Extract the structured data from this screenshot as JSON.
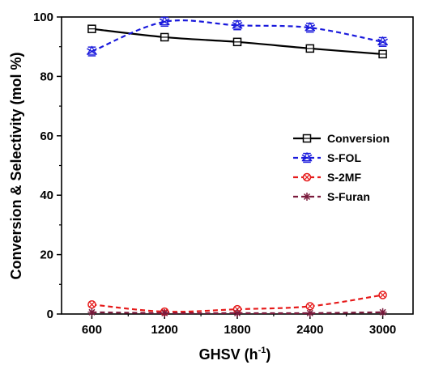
{
  "chart_data": {
    "type": "line",
    "xlabel": "GHSV (h",
    "xlabel_sup": "-1",
    "xlabel_tail": ")",
    "ylabel": "Conversion & Selectivity (mol %)",
    "x": [
      600,
      1200,
      1800,
      2400,
      3000
    ],
    "x_ticks": [
      "600",
      "1200",
      "1800",
      "2400",
      "3000"
    ],
    "y_ticks": [
      "0",
      "20",
      "40",
      "60",
      "80",
      "100"
    ],
    "xlim": [
      350,
      3250
    ],
    "ylim": [
      0,
      100
    ],
    "grid": false,
    "legend_position": "center-right",
    "series": [
      {
        "name": "Conversion",
        "values": [
          96.0,
          93.2,
          91.6,
          89.4,
          87.5
        ],
        "color": "#000000",
        "dash": "solid",
        "marker": "square"
      },
      {
        "name": "S-FOL",
        "values": [
          88.4,
          98.4,
          97.2,
          96.4,
          91.6
        ],
        "color": "#1a1adc",
        "dash": "dashed",
        "marker": "star"
      },
      {
        "name": "S-2MF",
        "values": [
          3.2,
          0.8,
          1.6,
          2.6,
          6.4
        ],
        "color": "#e61a1a",
        "dash": "dashed",
        "marker": "circle-x"
      },
      {
        "name": "S-Furan",
        "values": [
          0.6,
          0.3,
          0.3,
          0.3,
          0.6
        ],
        "color": "#7a1a3c",
        "dash": "dashed",
        "marker": "asterisk"
      }
    ]
  }
}
